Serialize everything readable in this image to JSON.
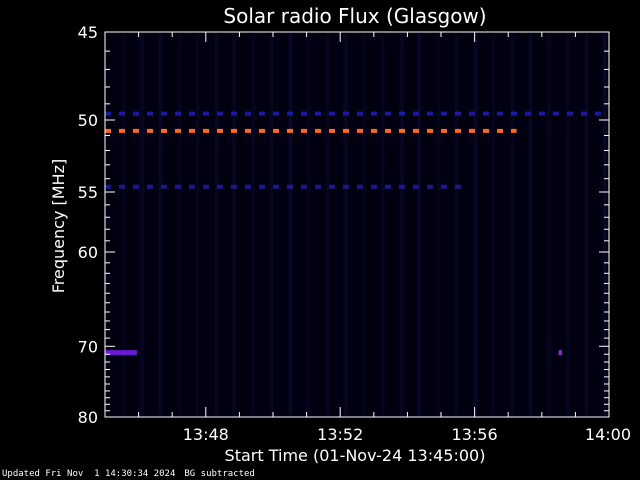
{
  "chart_data": {
    "type": "heatmap",
    "title": "Solar radio Flux (Glasgow)",
    "ylabel": "Frequency [MHz]",
    "xlabel": "Start Time (01-Nov-24 13:45:00)",
    "x_ticks": [
      "13:48",
      "13:52",
      "13:56",
      "14:00"
    ],
    "x_tick_minutes": [
      48,
      52,
      56,
      60
    ],
    "xlim_minutes": [
      45,
      60
    ],
    "y_ticks": [
      45,
      50,
      55,
      60,
      70,
      80
    ],
    "ylim": [
      45,
      80
    ],
    "y_scale": "reciprocal",
    "background_color": "#000000",
    "plot_color": "#000010",
    "features": [
      {
        "freq": 49.6,
        "t_start": 45.0,
        "t_end": 60.0,
        "color": "#1a1aa0",
        "style": "dashed"
      },
      {
        "freq": 50.7,
        "t_start": 45.0,
        "t_end": 57.25,
        "color": "#ff6a1a",
        "style": "dashed"
      },
      {
        "freq": 54.6,
        "t_start": 45.0,
        "t_end": 55.8,
        "color": "#1a1a90",
        "style": "dashed"
      },
      {
        "freq": 70.8,
        "t_start": 45.0,
        "t_end": 45.95,
        "color": "#6a1ad0",
        "style": "solid"
      },
      {
        "freq": 70.8,
        "t_start": 58.5,
        "t_end": 58.6,
        "color": "#8a2ae0",
        "style": "solid"
      }
    ]
  },
  "footer": {
    "updated": "Updated Fri Nov  1 14:30:34 2024",
    "note": "BG subtracted"
  }
}
